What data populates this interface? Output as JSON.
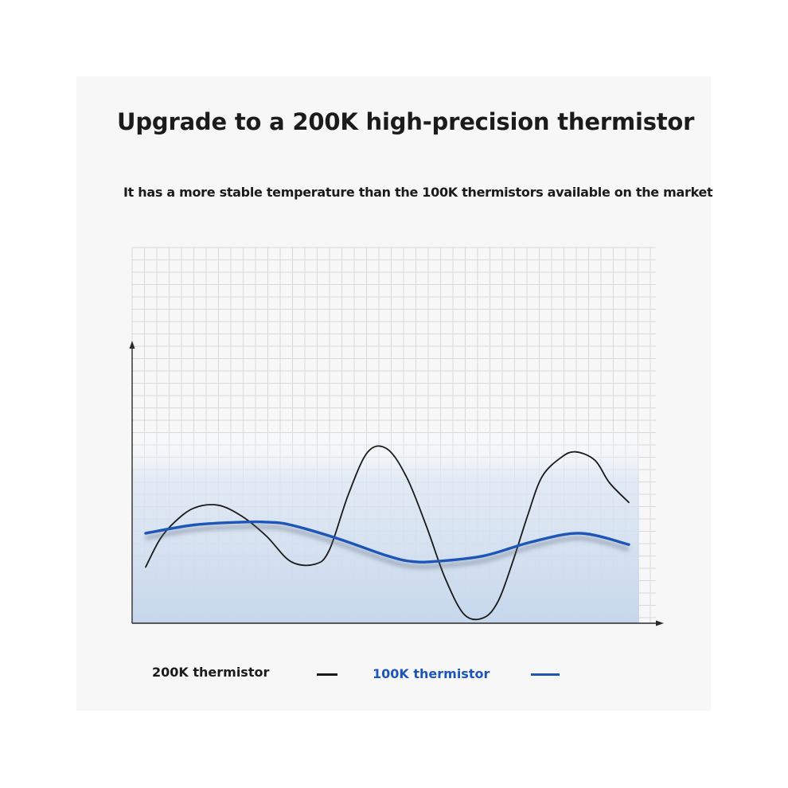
{
  "header": {
    "title": "Upgrade to a 200K high-precision thermistor",
    "subtitle": "It has a more stable temperature than the 100K thermistors available on the market"
  },
  "colors": {
    "series_200k": "#1a1a1a",
    "series_100k": "#1e56b8",
    "grid": "#d6d8dc",
    "fill": "#c9d9ee"
  },
  "chart_data": {
    "type": "line",
    "title": "",
    "xlabel": "",
    "ylabel": "",
    "xlim": [
      0,
      10
    ],
    "ylim": [
      0,
      10
    ],
    "grid": true,
    "legend_position": "bottom",
    "series": [
      {
        "name": "200K thermistor",
        "x": [
          0,
          0.3,
          0.6,
          1.0,
          1.5,
          2.0,
          2.5,
          3.0,
          3.5,
          3.8,
          4.2,
          4.6,
          5.0,
          5.4,
          5.8,
          6.2,
          6.6,
          7.0,
          7.3,
          7.6,
          7.9,
          8.2,
          8.6,
          8.9,
          9.3,
          9.6,
          10.0
        ],
        "values": [
          2.0,
          3.0,
          3.6,
          4.1,
          4.2,
          3.8,
          3.1,
          2.2,
          2.1,
          2.6,
          4.6,
          6.1,
          6.2,
          5.2,
          3.5,
          1.6,
          0.3,
          0.2,
          0.8,
          2.2,
          3.8,
          5.2,
          5.9,
          6.1,
          5.8,
          5.0,
          4.3
        ]
      },
      {
        "name": "100K thermistor",
        "x": [
          0,
          1.0,
          2.0,
          2.5,
          3.0,
          4.0,
          5.0,
          5.5,
          6.0,
          7.0,
          8.0,
          9.0,
          10.0
        ],
        "values": [
          3.2,
          3.5,
          3.6,
          3.6,
          3.5,
          3.0,
          2.4,
          2.2,
          2.2,
          2.4,
          2.9,
          3.2,
          2.8
        ]
      }
    ]
  }
}
